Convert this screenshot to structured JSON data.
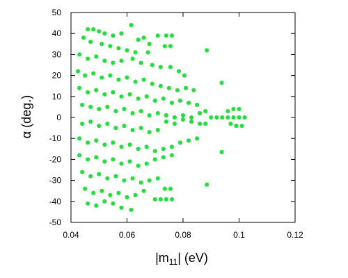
{
  "chart_data": {
    "type": "scatter",
    "xlabel": "|m11| (eV)",
    "xlabel_parts": {
      "prefix": "|m",
      "subscript": "11",
      "suffix": "| (eV)"
    },
    "ylabel": "α (deg.)",
    "ylabel_parts": {
      "symbol": "α",
      "text": " (deg.)"
    },
    "xlim": [
      0.04,
      0.12
    ],
    "ylim": [
      -50,
      50
    ],
    "x_ticks": [
      "0.04",
      "0.06",
      "0.08",
      "0.1",
      "0.12"
    ],
    "y_ticks": [
      "-50",
      "-40",
      "-30",
      "-20",
      "-10",
      "0",
      "10",
      "20",
      "30",
      "40",
      "50"
    ],
    "grid": false,
    "legend": "none",
    "marker_color": "#22e03a",
    "marker": "star",
    "series": [
      {
        "points": [
          [
            0.0615,
            44
          ],
          [
            0.046,
            42
          ],
          [
            0.048,
            42
          ],
          [
            0.05,
            41
          ],
          [
            0.052,
            40
          ],
          [
            0.055,
            39
          ],
          [
            0.058,
            40
          ],
          [
            0.066,
            38
          ],
          [
            0.071,
            39
          ],
          [
            0.074,
            39
          ],
          [
            0.076,
            39
          ],
          [
            0.064,
            37
          ],
          [
            0.068,
            35
          ],
          [
            0.0445,
            38
          ],
          [
            0.047,
            36
          ],
          [
            0.051,
            35
          ],
          [
            0.054,
            34
          ],
          [
            0.057,
            33
          ],
          [
            0.06,
            32
          ],
          [
            0.063,
            31
          ],
          [
            0.0675,
            31
          ],
          [
            0.0735,
            34
          ],
          [
            0.0755,
            34
          ],
          [
            0.0885,
            32
          ],
          [
            0.043,
            30
          ],
          [
            0.046,
            28
          ],
          [
            0.049,
            29
          ],
          [
            0.052,
            27
          ],
          [
            0.055,
            26
          ],
          [
            0.058,
            27
          ],
          [
            0.062,
            28
          ],
          [
            0.065,
            26
          ],
          [
            0.069,
            25
          ],
          [
            0.072,
            24
          ],
          [
            0.0755,
            24
          ],
          [
            0.0785,
            22
          ],
          [
            0.0805,
            20
          ],
          [
            0.0425,
            22
          ],
          [
            0.045,
            20
          ],
          [
            0.048,
            21
          ],
          [
            0.051,
            19
          ],
          [
            0.054,
            20
          ],
          [
            0.057,
            18
          ],
          [
            0.06,
            19
          ],
          [
            0.063,
            17
          ],
          [
            0.066,
            18
          ],
          [
            0.069,
            16
          ],
          [
            0.072,
            15
          ],
          [
            0.075,
            14
          ],
          [
            0.078,
            13
          ],
          [
            0.081,
            14
          ],
          [
            0.0838,
            13
          ],
          [
            0.0938,
            16.5
          ],
          [
            0.043,
            14
          ],
          [
            0.046,
            12
          ],
          [
            0.049,
            13
          ],
          [
            0.052,
            11
          ],
          [
            0.055,
            12
          ],
          [
            0.058,
            10
          ],
          [
            0.061,
            11
          ],
          [
            0.064,
            9
          ],
          [
            0.067,
            10
          ],
          [
            0.07,
            8
          ],
          [
            0.073,
            9
          ],
          [
            0.076,
            7
          ],
          [
            0.079,
            8
          ],
          [
            0.082,
            7
          ],
          [
            0.085,
            6
          ],
          [
            0.044,
            6
          ],
          [
            0.047,
            5
          ],
          [
            0.05,
            4
          ],
          [
            0.053,
            5
          ],
          [
            0.056,
            3
          ],
          [
            0.059,
            4
          ],
          [
            0.062,
            2
          ],
          [
            0.065,
            3
          ],
          [
            0.068,
            1
          ],
          [
            0.071,
            2
          ],
          [
            0.074,
            1
          ],
          [
            0.077,
            0
          ],
          [
            0.08,
            1
          ],
          [
            0.083,
            0
          ],
          [
            0.086,
            2
          ],
          [
            0.088,
            3
          ],
          [
            0.044,
            -3
          ],
          [
            0.047,
            -2
          ],
          [
            0.05,
            -4
          ],
          [
            0.053,
            -3
          ],
          [
            0.056,
            -5
          ],
          [
            0.059,
            -4
          ],
          [
            0.062,
            -6
          ],
          [
            0.065,
            -5
          ],
          [
            0.068,
            -7
          ],
          [
            0.071,
            -6
          ],
          [
            0.074,
            -2
          ],
          [
            0.077,
            -3
          ],
          [
            0.08,
            -1
          ],
          [
            0.083,
            -2
          ],
          [
            0.086,
            -3
          ],
          [
            0.088,
            -3
          ],
          [
            0.09,
            0
          ],
          [
            0.092,
            0
          ],
          [
            0.094,
            0
          ],
          [
            0.096,
            0
          ],
          [
            0.098,
            0
          ],
          [
            0.1,
            0
          ],
          [
            0.102,
            0
          ],
          [
            0.096,
            3
          ],
          [
            0.098,
            4
          ],
          [
            0.1,
            4
          ],
          [
            0.097,
            -3
          ],
          [
            0.099,
            -4
          ],
          [
            0.101,
            -4
          ],
          [
            0.043,
            -10
          ],
          [
            0.046,
            -12
          ],
          [
            0.049,
            -11
          ],
          [
            0.052,
            -13
          ],
          [
            0.055,
            -12
          ],
          [
            0.058,
            -14
          ],
          [
            0.061,
            -13
          ],
          [
            0.064,
            -15
          ],
          [
            0.067,
            -14
          ],
          [
            0.07,
            -16
          ],
          [
            0.073,
            -15
          ],
          [
            0.076,
            -14
          ],
          [
            0.079,
            -12
          ],
          [
            0.082,
            -11
          ],
          [
            0.085,
            -10
          ],
          [
            0.043,
            -18
          ],
          [
            0.046,
            -20
          ],
          [
            0.049,
            -19
          ],
          [
            0.052,
            -21
          ],
          [
            0.055,
            -20
          ],
          [
            0.058,
            -22
          ],
          [
            0.061,
            -21
          ],
          [
            0.064,
            -23
          ],
          [
            0.067,
            -22
          ],
          [
            0.07,
            -20
          ],
          [
            0.073,
            -19
          ],
          [
            0.076,
            -18
          ],
          [
            0.0938,
            -16.5
          ],
          [
            0.044,
            -26
          ],
          [
            0.047,
            -28
          ],
          [
            0.05,
            -27
          ],
          [
            0.053,
            -29
          ],
          [
            0.056,
            -28
          ],
          [
            0.059,
            -30
          ],
          [
            0.062,
            -29
          ],
          [
            0.065,
            -31
          ],
          [
            0.068,
            -30
          ],
          [
            0.071,
            -29
          ],
          [
            0.045,
            -34
          ],
          [
            0.048,
            -36
          ],
          [
            0.051,
            -35
          ],
          [
            0.054,
            -37
          ],
          [
            0.057,
            -36
          ],
          [
            0.06,
            -38
          ],
          [
            0.063,
            -37
          ],
          [
            0.066,
            -35
          ],
          [
            0.0735,
            -34
          ],
          [
            0.0755,
            -34
          ],
          [
            0.0885,
            -32
          ],
          [
            0.046,
            -41
          ],
          [
            0.049,
            -42
          ],
          [
            0.052,
            -40
          ],
          [
            0.055,
            -41
          ],
          [
            0.058,
            -43
          ],
          [
            0.0615,
            -44
          ],
          [
            0.07,
            -39
          ],
          [
            0.072,
            -39
          ],
          [
            0.074,
            -39
          ],
          [
            0.076,
            -39
          ]
        ]
      }
    ]
  }
}
